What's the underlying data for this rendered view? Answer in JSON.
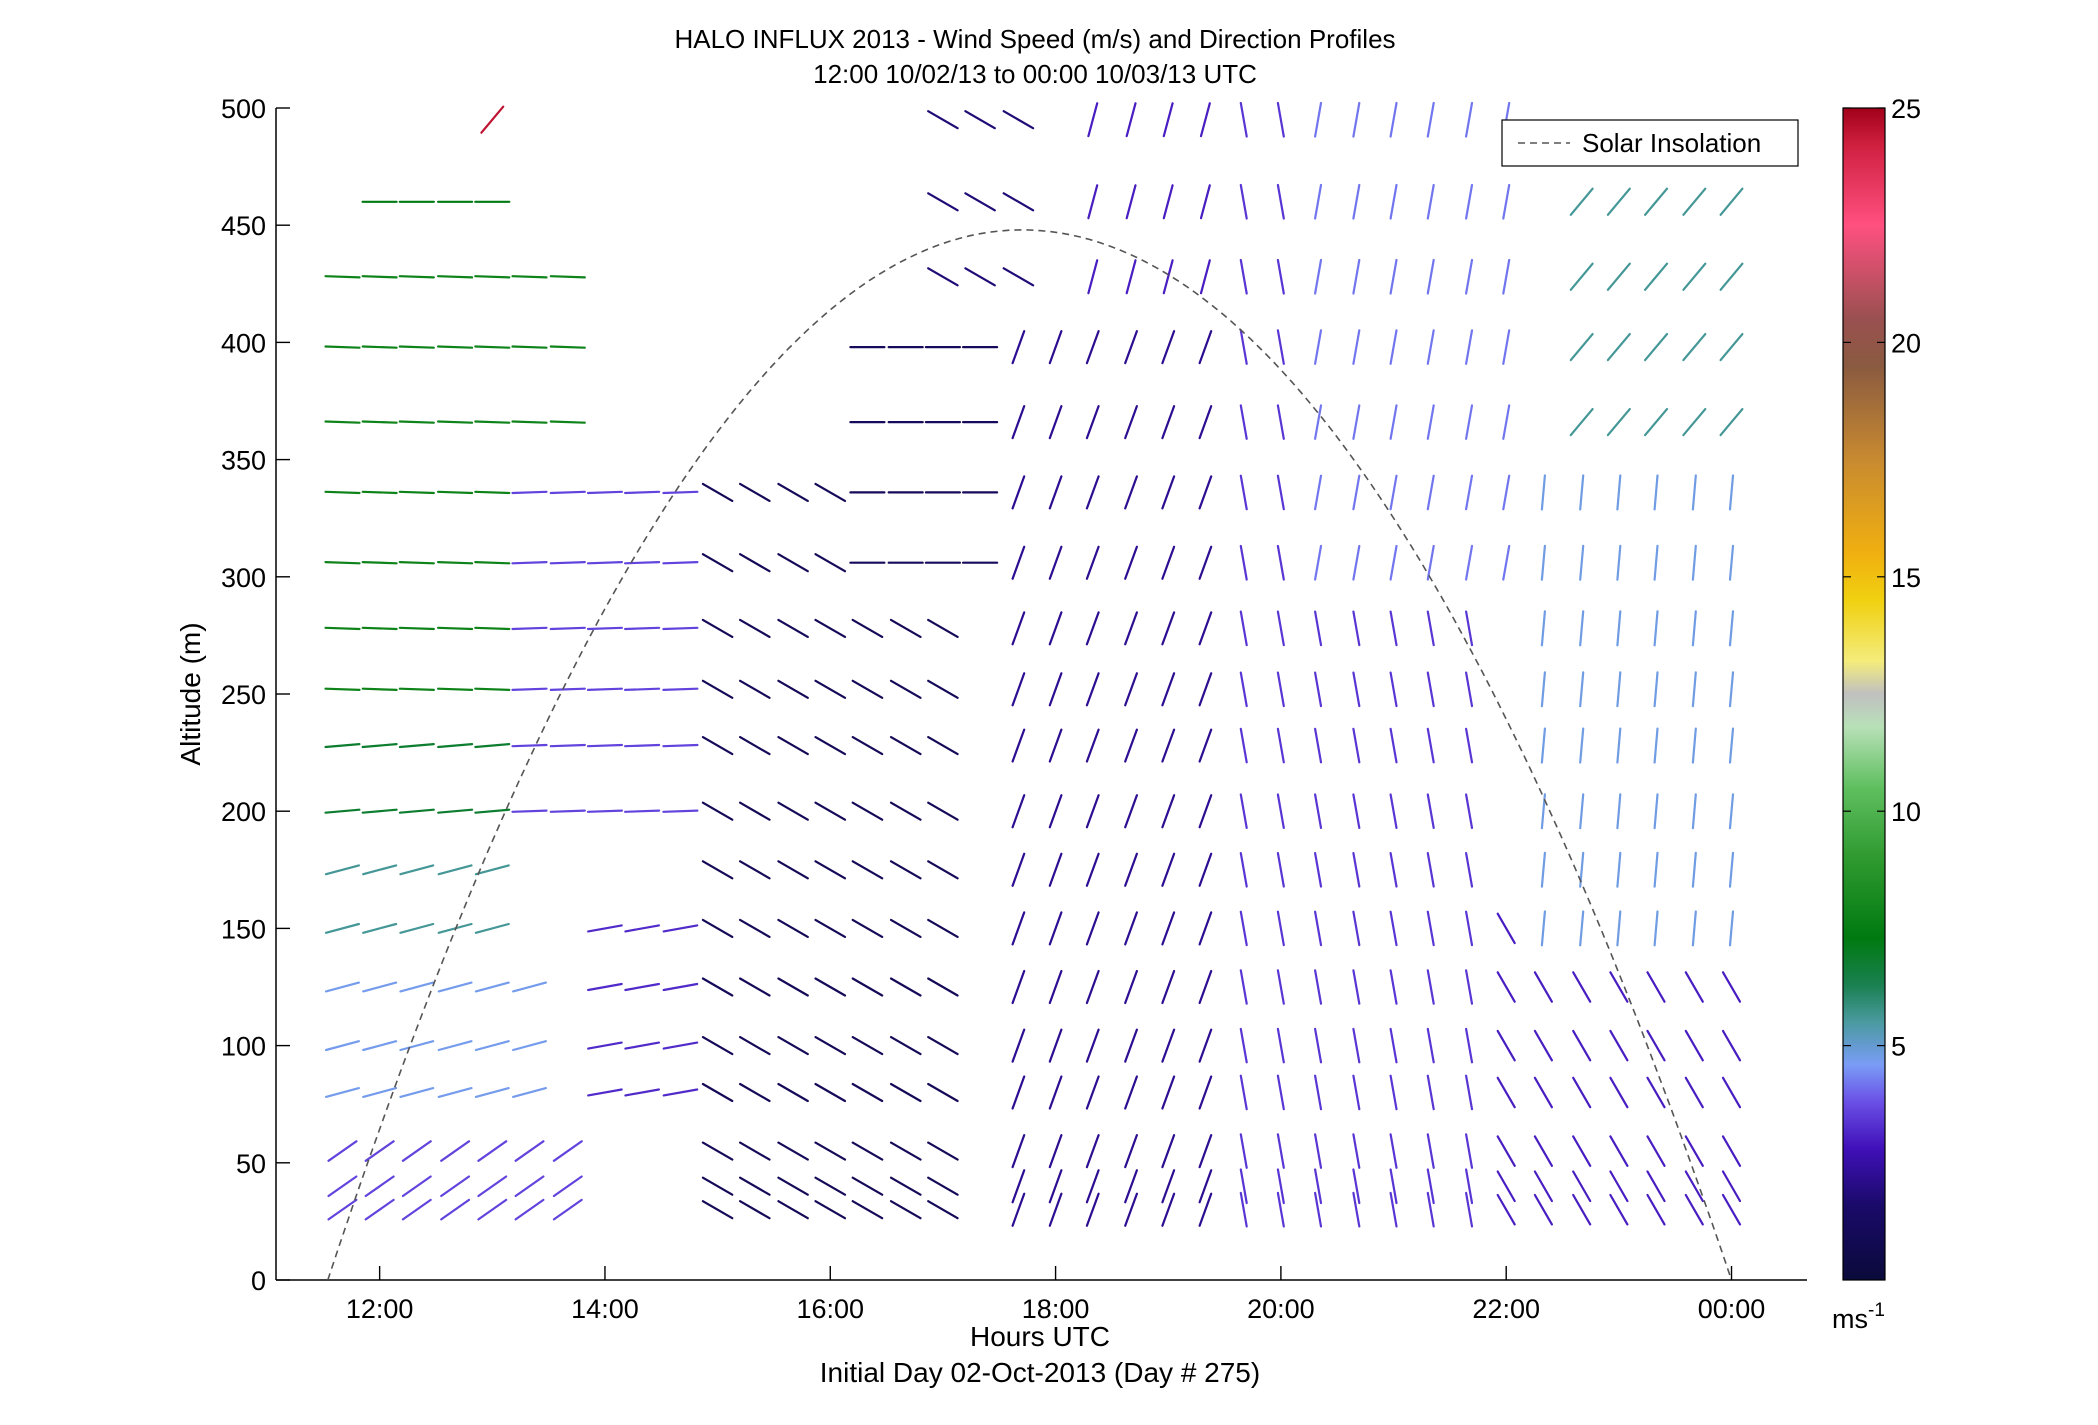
{
  "chart_data": {
    "type": "vector_field",
    "title": "HALO INFLUX 2013 - Wind Speed (m/s) and Direction Profiles",
    "subtitle": "12:00 10/02/13 to 00:00 10/03/13  UTC",
    "xlabel": "Hours UTC",
    "xlabel2": "Initial Day 02-Oct-2013 (Day # 275)",
    "ylabel": "Altitude (m)",
    "x_ticks": [
      "12:00",
      "14:00",
      "16:00",
      "18:00",
      "20:00",
      "22:00",
      "00:00"
    ],
    "x_tick_hours": [
      12,
      14,
      16,
      18,
      20,
      22,
      24
    ],
    "xlim_hours": [
      11.08,
      24.67
    ],
    "y_ticks": [
      0,
      50,
      100,
      150,
      200,
      250,
      300,
      350,
      400,
      450,
      500
    ],
    "ylim": [
      0,
      500
    ],
    "legend": {
      "entries": [
        "Solar Insolation"
      ],
      "placement": "top-right"
    },
    "colorbar": {
      "ticks": [
        5,
        10,
        15,
        20,
        25
      ],
      "range": [
        0,
        25
      ],
      "unit_base": "ms",
      "unit_exp": "-1",
      "colormap": [
        [
          0,
          "#0a0a3a"
        ],
        [
          1.6,
          "#1a0a6a"
        ],
        [
          2.8,
          "#4010b8"
        ],
        [
          3.8,
          "#6a50e6"
        ],
        [
          4.6,
          "#7a9cf6"
        ],
        [
          5.5,
          "#4a9aa0"
        ],
        [
          6.3,
          "#1a8050"
        ],
        [
          7.3,
          "#007a10"
        ],
        [
          9,
          "#2f9a30"
        ],
        [
          10.5,
          "#5fbf5f"
        ],
        [
          11.8,
          "#b8e0b8"
        ],
        [
          12.5,
          "#c0c0c0"
        ],
        [
          13.2,
          "#f4ec7c"
        ],
        [
          14.5,
          "#f0d010"
        ],
        [
          15.5,
          "#f0b010"
        ],
        [
          17.5,
          "#c88a30"
        ],
        [
          19.5,
          "#8a5a40"
        ],
        [
          20.5,
          "#9a5050"
        ],
        [
          22.5,
          "#ff5080"
        ],
        [
          24.2,
          "#d02040"
        ],
        [
          25,
          "#a0001a"
        ]
      ]
    },
    "solar_insolation": {
      "description_points_hours_alt": [
        [
          11.54,
          0
        ],
        [
          17.7,
          448
        ],
        [
          24.0,
          0
        ]
      ]
    },
    "times_hours": [
      11.67,
      12.0,
      12.33,
      12.67,
      13.0,
      13.33,
      13.67,
      14.0,
      14.33,
      14.67,
      15.0,
      15.33,
      15.67,
      16.0,
      16.33,
      16.67,
      17.0,
      17.33,
      17.67,
      18.0,
      18.33,
      18.67,
      19.0,
      19.33,
      19.67,
      20.0,
      20.33,
      20.67,
      21.0,
      21.33,
      21.67,
      22.0,
      22.33,
      22.67,
      23.0,
      23.33,
      23.67,
      24.0
    ],
    "altitudes_m": [
      30,
      40,
      55,
      80,
      100,
      125,
      150,
      175,
      200,
      228,
      252,
      278,
      306,
      336,
      366,
      398,
      428,
      460,
      495
    ],
    "segments": [
      {
        "t_range": [
          11.67,
          13.67
        ],
        "z_range": [
          30,
          60
        ],
        "speed": 3.6,
        "dir": 235
      },
      {
        "t_range": [
          11.67,
          13.5
        ],
        "z_range": [
          80,
          140
        ],
        "speed": 4.7,
        "dir": 255
      },
      {
        "t_range": [
          11.67,
          13.0
        ],
        "z_range": [
          150,
          180
        ],
        "speed": 5.6,
        "dir": 255
      },
      {
        "t_range": [
          11.67,
          13.33
        ],
        "z_range": [
          200,
          240
        ],
        "speed": 6.8,
        "dir": 265
      },
      {
        "t_range": [
          11.67,
          13.67
        ],
        "z_range": [
          250,
          440
        ],
        "speed": 7.8,
        "dir": 272
      },
      {
        "t_range": [
          12.0,
          13.0
        ],
        "z_range": [
          450,
          470
        ],
        "speed": 7.3,
        "dir": 270
      },
      {
        "t_range": [
          13.0,
          13.0
        ],
        "z_range": [
          490,
          500
        ],
        "speed": 24.5,
        "dir": 220
      },
      {
        "t_range": [
          13.33,
          14.67
        ],
        "z_range": [
          200,
          350
        ],
        "speed": 3.6,
        "dir": 268
      },
      {
        "t_range": [
          14.0,
          14.67
        ],
        "z_range": [
          60,
          150
        ],
        "speed": 3.2,
        "dir": 260
      },
      {
        "t_range": [
          15.0,
          17.0
        ],
        "z_range": [
          20,
          350
        ],
        "speed": 1.0,
        "dir": 300
      },
      {
        "t_range": [
          16.33,
          17.67
        ],
        "z_range": [
          300,
          400
        ],
        "speed": 1.1,
        "dir": 270
      },
      {
        "t_range": [
          17.0,
          17.67
        ],
        "z_range": [
          420,
          500
        ],
        "speed": 1.8,
        "dir": 300
      },
      {
        "t_range": [
          17.67,
          19.67
        ],
        "z_range": [
          20,
          400
        ],
        "speed": 2.2,
        "dir": 200
      },
      {
        "t_range": [
          18.33,
          20.33
        ],
        "z_range": [
          400,
          500
        ],
        "speed": 3.0,
        "dir": 195
      },
      {
        "t_range": [
          19.67,
          21.67
        ],
        "z_range": [
          20,
          500
        ],
        "speed": 3.4,
        "dir": 170
      },
      {
        "t_range": [
          20.33,
          22.0
        ],
        "z_range": [
          300,
          500
        ],
        "speed": 4.2,
        "dir": 190
      },
      {
        "t_range": [
          22.0,
          24.0
        ],
        "z_range": [
          20,
          150
        ],
        "speed": 3.0,
        "dir": 330
      },
      {
        "t_range": [
          22.33,
          24.0
        ],
        "z_range": [
          150,
          350
        ],
        "speed": 4.8,
        "dir": 185
      },
      {
        "t_range": [
          22.67,
          24.0
        ],
        "z_range": [
          350,
          470
        ],
        "speed": 5.6,
        "dir": 220
      }
    ]
  }
}
